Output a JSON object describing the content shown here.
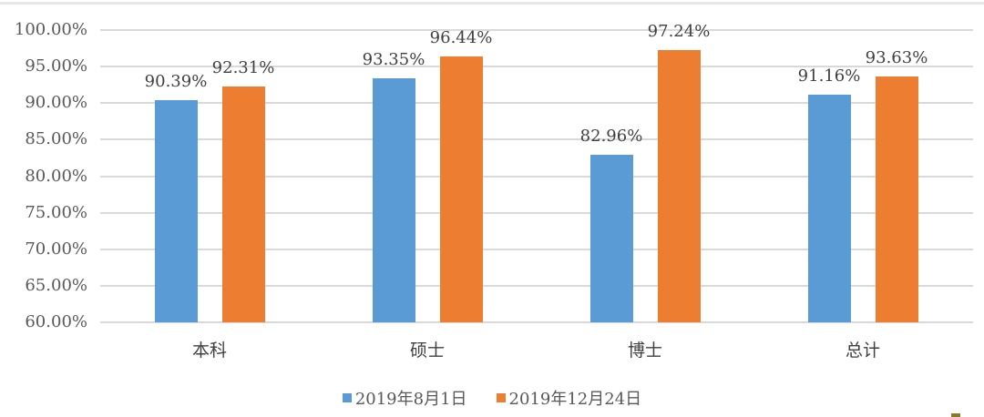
{
  "chart_data": {
    "type": "bar",
    "title": "",
    "xlabel": "",
    "ylabel": "",
    "ylim": [
      60,
      100
    ],
    "y_ticks": [
      "60.00%",
      "65.00%",
      "70.00%",
      "75.00%",
      "80.00%",
      "85.00%",
      "90.00%",
      "95.00%",
      "100.00%"
    ],
    "grid": true,
    "legend_position": "bottom",
    "categories": [
      "本科",
      "硕士",
      "博士",
      "总计"
    ],
    "series": [
      {
        "name": "2019年8月1日",
        "color": "#5b9bd5",
        "values": [
          90.39,
          93.35,
          82.96,
          91.16
        ],
        "labels": [
          "90.39%",
          "93.35%",
          "82.96%",
          "91.16%"
        ]
      },
      {
        "name": "2019年12月24日",
        "color": "#ed7d31",
        "values": [
          92.31,
          96.44,
          97.24,
          93.63
        ],
        "labels": [
          "92.31%",
          "96.44%",
          "97.24%",
          "93.63%"
        ]
      }
    ]
  }
}
